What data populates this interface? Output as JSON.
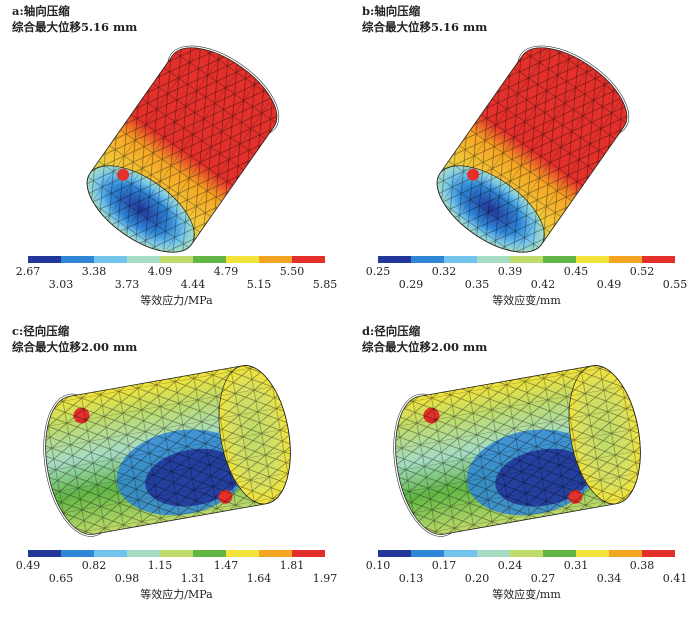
{
  "colorbar_colors": [
    "#22379a",
    "#2f86d6",
    "#72c4ec",
    "#a6dcc4",
    "#bedb6c",
    "#62b646",
    "#f2e43a",
    "#f5a524",
    "#e3302a"
  ],
  "panels": [
    {
      "title": "a:轴向压缩",
      "subtitle": "综合最大位移5.16 mm",
      "colorbar": {
        "ticks": [
          "2.67",
          "3.03",
          "3.38",
          "3.73",
          "4.09",
          "4.44",
          "4.79",
          "5.15",
          "5.50",
          "5.85"
        ],
        "label": "等效应力/MPa"
      }
    },
    {
      "title": "b:轴向压缩",
      "subtitle": "综合最大位移5.16 mm",
      "colorbar": {
        "ticks": [
          "0.25",
          "0.29",
          "0.32",
          "0.35",
          "0.39",
          "0.42",
          "0.45",
          "0.49",
          "0.52",
          "0.55"
        ],
        "label": "等效应变/mm"
      }
    },
    {
      "title": "c:径向压缩",
      "subtitle": "综合最大位移2.00 mm",
      "colorbar": {
        "ticks": [
          "0.49",
          "0.65",
          "0.82",
          "0.98",
          "1.15",
          "1.31",
          "1.47",
          "1.64",
          "1.81",
          "1.97"
        ],
        "label": "等效应力/MPa"
      }
    },
    {
      "title": "d:径向压缩",
      "subtitle": "综合最大位移2.00 mm",
      "colorbar": {
        "ticks": [
          "0.10",
          "0.13",
          "0.17",
          "0.20",
          "0.24",
          "0.27",
          "0.31",
          "0.34",
          "0.38",
          "0.41"
        ],
        "label": "等效应变/mm"
      }
    }
  ]
}
